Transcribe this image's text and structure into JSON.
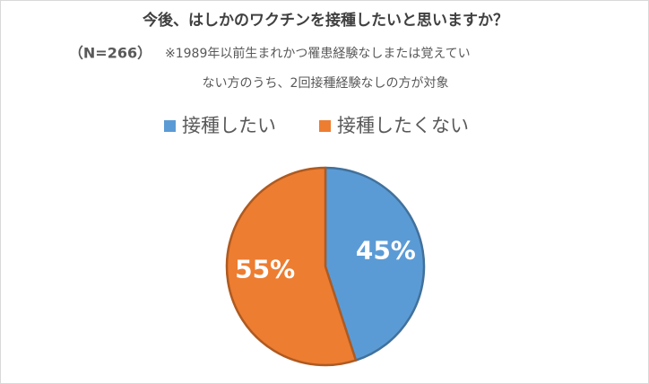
{
  "chart_data": {
    "type": "pie",
    "title": "今後、はしかのワクチンを接種したいと思いますか？",
    "sample": "（N=266）",
    "note_lines": [
      "※1989年以前生まれかつ罹患経験なしまたは覚えてい",
      "ない方のうち、2回接種経験なしの方が対象"
    ],
    "categories": [
      "接種したい",
      "接種したくない"
    ],
    "values": [
      45,
      55
    ],
    "value_labels": [
      "45%",
      "55%"
    ],
    "colors": [
      "#5b9bd5",
      "#ed7d31"
    ],
    "edge_colors": [
      "#41719c",
      "#ae5a21"
    ],
    "legend": "top"
  }
}
